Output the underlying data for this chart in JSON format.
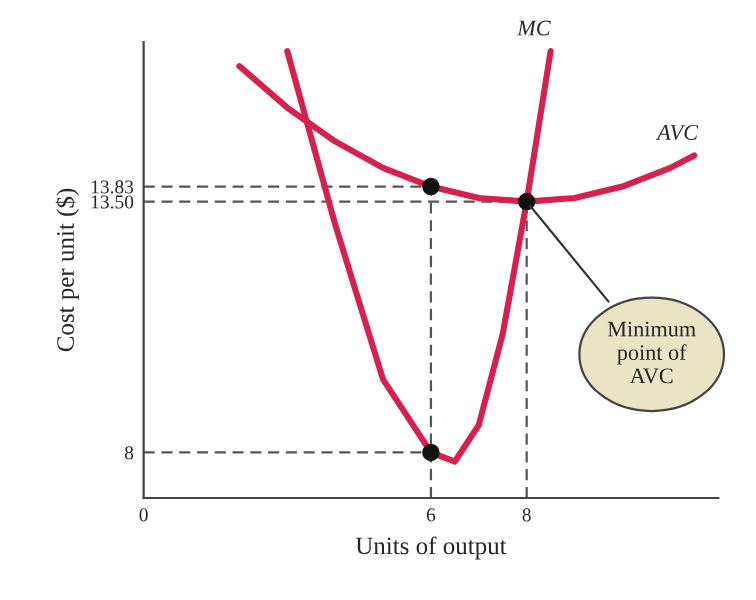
{
  "chart_data": {
    "type": "line",
    "xlabel": "Units of output",
    "ylabel": "Cost per unit ($)",
    "xlim": [
      0,
      12
    ],
    "ylim": [
      7,
      17
    ],
    "xticks": [
      0,
      6,
      8
    ],
    "yticks": [
      8,
      {
        "value": 13.5,
        "label": "13.50"
      },
      13.83
    ],
    "grid": false,
    "legend": false,
    "marker": "none",
    "line_style": "solid",
    "series": [
      {
        "name": "MC",
        "color": "#d6204e",
        "x": [
          3,
          4,
          5,
          6,
          6.5,
          7,
          7.5,
          8,
          8.5
        ],
        "values": [
          16.8,
          13.0,
          9.6,
          8.0,
          7.8,
          8.6,
          10.6,
          13.5,
          16.8
        ]
      },
      {
        "name": "AVC",
        "color": "#d6204e",
        "x": [
          2,
          3,
          4,
          5,
          6,
          7,
          8,
          9,
          10,
          11,
          11.5
        ],
        "values": [
          16.47,
          15.56,
          14.82,
          14.24,
          13.83,
          13.58,
          13.5,
          13.58,
          13.83,
          14.24,
          14.51
        ]
      },
      {
        "type": "scatter",
        "marker": "circle",
        "color": "#111111",
        "x": [
          6,
          6,
          8
        ],
        "values": [
          13.83,
          8,
          13.5
        ]
      }
    ],
    "ref_lines": [
      {
        "axis": "y",
        "value": 13.83,
        "color": "#555555",
        "line_style": "dashed"
      },
      {
        "axis": "y",
        "value": 13.5,
        "color": "#555555",
        "line_style": "dashed"
      },
      {
        "axis": "y",
        "value": 8,
        "color": "#555555",
        "line_style": "dashed"
      },
      {
        "axis": "x",
        "value": 6,
        "color": "#555555",
        "line_style": "dashed"
      },
      {
        "axis": "x",
        "value": 8,
        "color": "#555555",
        "line_style": "dashed"
      }
    ],
    "annotations": [
      {
        "text": "Minimum\npoint of\nAVC",
        "x": 8,
        "y": 13.5
      }
    ]
  }
}
